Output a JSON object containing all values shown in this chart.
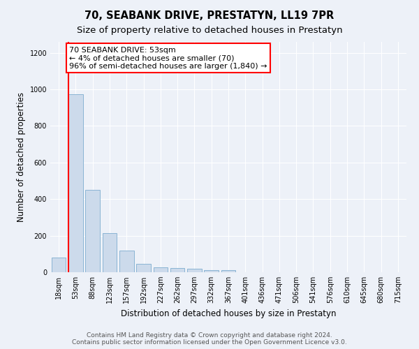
{
  "title": "70, SEABANK DRIVE, PRESTATYN, LL19 7PR",
  "subtitle": "Size of property relative to detached houses in Prestatyn",
  "xlabel": "Distribution of detached houses by size in Prestatyn",
  "ylabel": "Number of detached properties",
  "bar_labels": [
    "18sqm",
    "53sqm",
    "88sqm",
    "123sqm",
    "157sqm",
    "192sqm",
    "227sqm",
    "262sqm",
    "297sqm",
    "332sqm",
    "367sqm",
    "401sqm",
    "436sqm",
    "471sqm",
    "506sqm",
    "541sqm",
    "576sqm",
    "610sqm",
    "645sqm",
    "680sqm",
    "715sqm"
  ],
  "bar_values": [
    80,
    975,
    450,
    215,
    120,
    47,
    25,
    22,
    20,
    12,
    10,
    0,
    0,
    0,
    0,
    0,
    0,
    0,
    0,
    0,
    0
  ],
  "bar_color": "#ccdaeb",
  "bar_edge_color": "#8ab4d4",
  "vline_color": "red",
  "annotation_text": "70 SEABANK DRIVE: 53sqm\n← 4% of detached houses are smaller (70)\n96% of semi-detached houses are larger (1,840) →",
  "annotation_box_color": "white",
  "annotation_box_edge": "red",
  "ylim": [
    0,
    1260
  ],
  "yticks": [
    0,
    200,
    400,
    600,
    800,
    1000,
    1200
  ],
  "background_color": "#edf1f8",
  "axes_background": "#edf1f8",
  "footnote": "Contains HM Land Registry data © Crown copyright and database right 2024.\nContains public sector information licensed under the Open Government Licence v3.0.",
  "title_fontsize": 10.5,
  "subtitle_fontsize": 9.5,
  "xlabel_fontsize": 8.5,
  "ylabel_fontsize": 8.5,
  "tick_fontsize": 7,
  "annotation_fontsize": 8,
  "footnote_fontsize": 6.5
}
